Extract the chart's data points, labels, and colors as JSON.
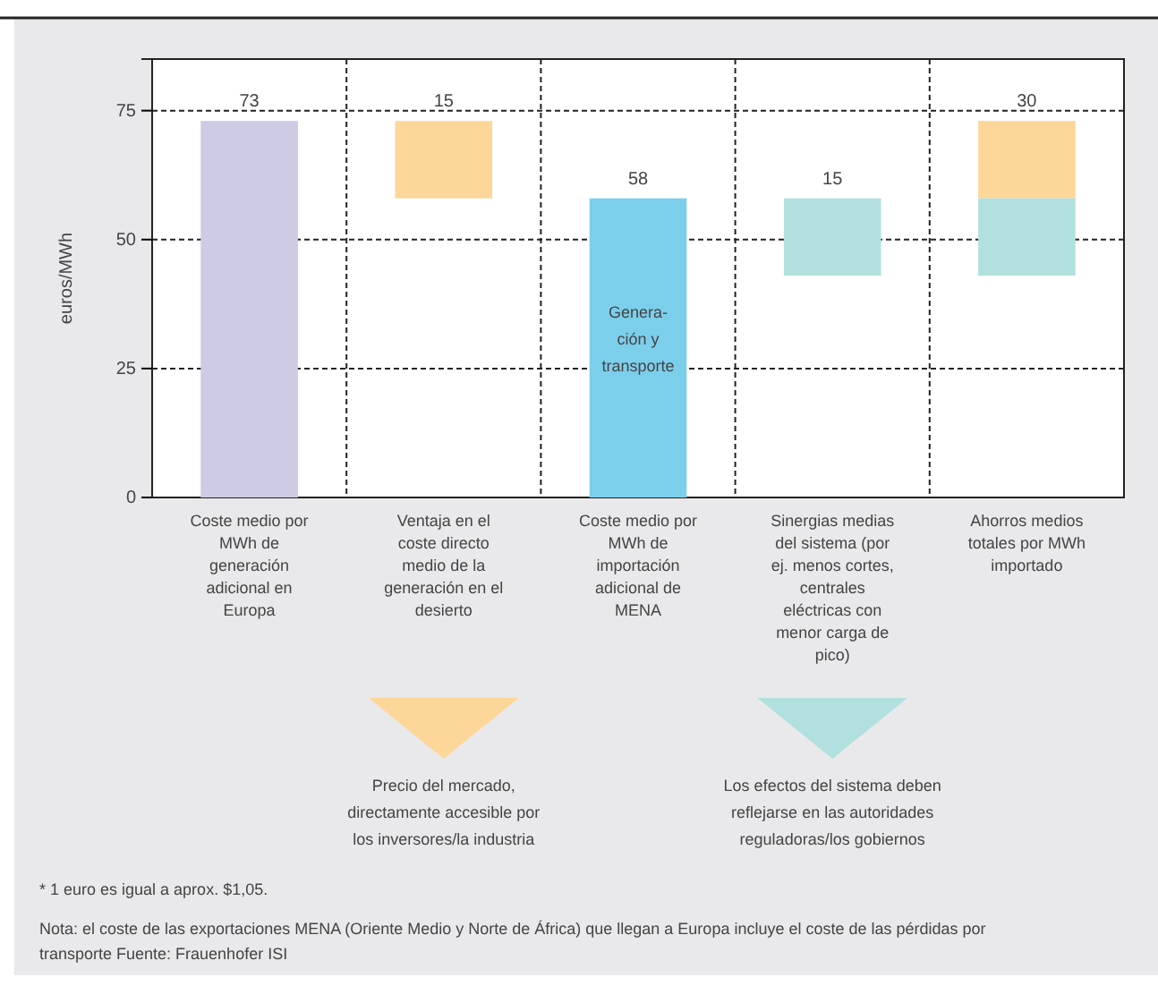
{
  "chart_data": {
    "type": "bar",
    "ylabel": "euros/MWh",
    "categories": [
      "Coste medio por MWh de generación adicional en Europa",
      "Ventaja en el coste directo medio de la generación en el desierto",
      "Coste medio por MWh de importación adicional de MENA",
      "Sinergias medias del sistema (por ej. menos cortes, centrales eléctricas con menor carga de pico)",
      "Ahorros medios totales por MWh importado"
    ],
    "series": [
      {
        "values": [
          73,
          null,
          58,
          null,
          null
        ],
        "base": [
          0,
          null,
          0,
          null,
          null
        ],
        "colors": [
          "#cecbe5",
          null,
          "#7ccfeb",
          null,
          null
        ]
      },
      {
        "color": "#fdd699",
        "values": [
          null,
          15,
          null,
          null,
          15
        ],
        "base": [
          null,
          58,
          null,
          null,
          58
        ]
      },
      {
        "color": "#b2e0df",
        "values": [
          null,
          null,
          null,
          15,
          15
        ],
        "base": [
          null,
          null,
          null,
          43,
          43
        ]
      }
    ],
    "totals": [
      "73",
      "15",
      "58",
      "15",
      "30"
    ],
    "ylim": [
      0,
      85
    ],
    "yticks": [
      0,
      25,
      50,
      75
    ],
    "grid": true,
    "annotations": [
      "Genera-\nción y\ntransporte",
      "Precio del mercado,\ndirectamente accesible por\nlos inversores/la industria",
      "Los efectos del sistema deben\nreflejarse en las autoridades\nreguladoras/los gobiernos",
      "* 1 euro es igual a aprox. $1,05.",
      "Nota: el coste de las exportaciones MENA (Oriente Medio y Norte de África) que llegan a Europa incluye el coste de las pérdidas por transporte Fuente: Frauenhofer ISI"
    ]
  }
}
